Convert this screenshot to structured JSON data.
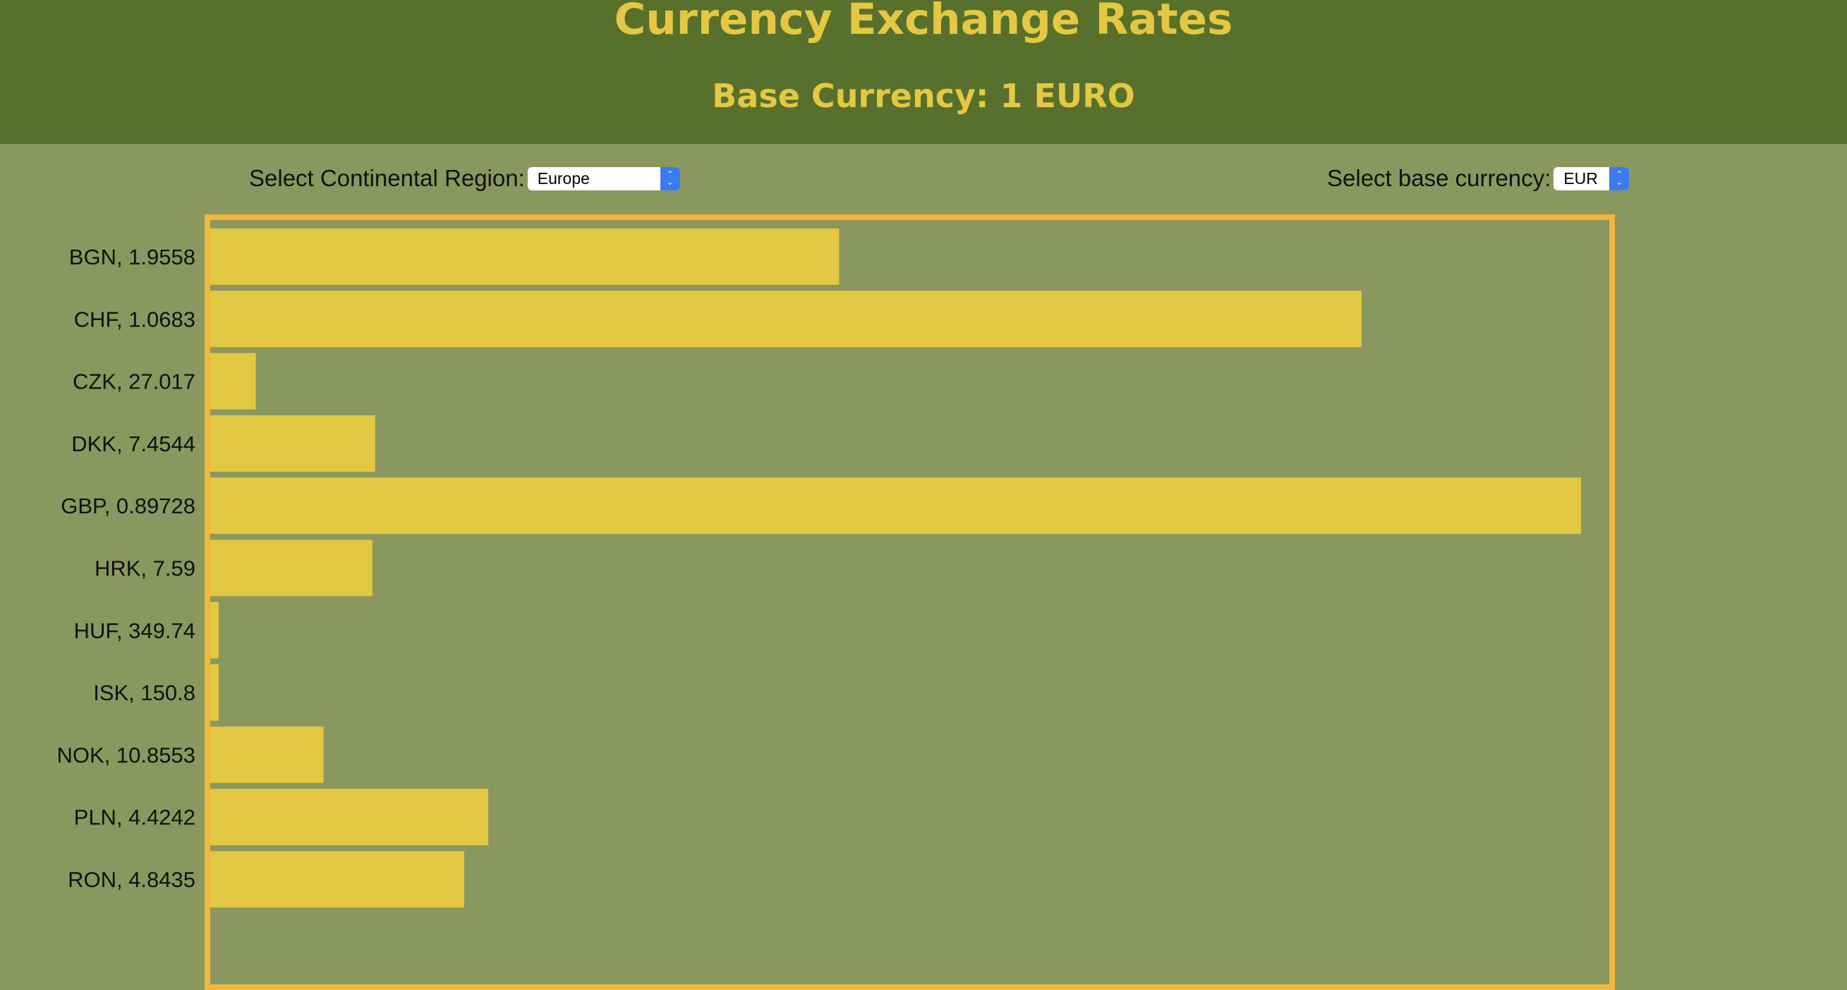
{
  "header": {
    "title": "Currency Exchange Rates",
    "subtitle": "Base Currency: 1 EURO"
  },
  "controls": {
    "region_label": "Select Continental Region:",
    "region_value": "Europe",
    "base_label": "Select base currency:",
    "base_value": "EUR"
  },
  "colors": {
    "header_bg": "#57702b",
    "page_bg": "#8a975f",
    "text_accent": "#e4c843",
    "bar": "#e2c843",
    "frame": "#f1b63d",
    "select_arrow": "#3b7bf0"
  },
  "chart_data": {
    "type": "bar",
    "orientation": "horizontal",
    "categories": [
      "BGN, 1.9558",
      "CHF, 1.0683",
      "CZK, 27.017",
      "DKK, 7.4544",
      "GBP, 0.89728",
      "HRK, 7.59",
      "HUF, 349.74",
      "ISK, 150.8",
      "NOK, 10.8553",
      "PLN, 4.4242",
      "RON, 4.8435"
    ],
    "values": [
      1.9558,
      1.0683,
      27.017,
      7.4544,
      0.89728,
      7.59,
      349.74,
      150.8,
      10.8553,
      4.4242,
      4.8435
    ],
    "title": "",
    "xlabel": "",
    "ylabel": "",
    "scale": "reciprocal",
    "grid": false
  }
}
